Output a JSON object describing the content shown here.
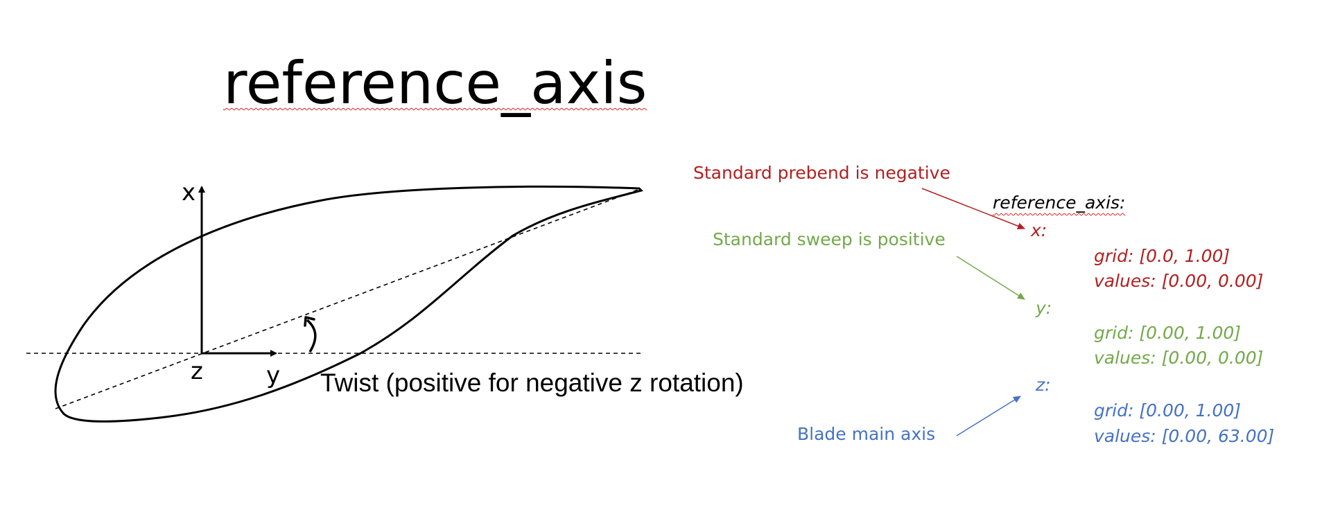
{
  "title": "reference_axis",
  "axes": {
    "x": "x",
    "y": "y",
    "z": "z"
  },
  "twist_label": "Twist (positive for negative z rotation)",
  "annotations": {
    "prebend": "Standard prebend is negative",
    "sweep": "Standard sweep is positive",
    "main_axis": "Blade main axis"
  },
  "yaml": {
    "header": "reference_axis:",
    "x": {
      "key": "x:",
      "grid": "grid: [0.0, 1.00]",
      "values": "values: [0.00, 0.00]"
    },
    "y": {
      "key": "y:",
      "grid": "grid:  [0.00, 1.00]",
      "values": "values: [0.00, 0.00]"
    },
    "z": {
      "key": "z:",
      "grid": "grid:  [0.00, 1.00]",
      "values": "values:  [0.00, 63.00]"
    }
  },
  "colors": {
    "x": "#b21f1f",
    "y": "#72a94b",
    "z": "#4472c4"
  }
}
